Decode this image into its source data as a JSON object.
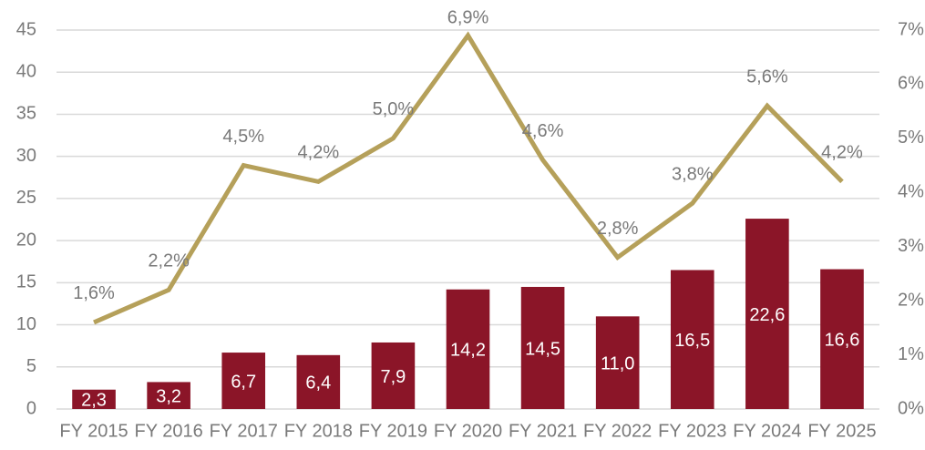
{
  "chart_data": {
    "type": "bar_line",
    "categories": [
      "FY 2015",
      "FY 2016",
      "FY 2017",
      "FY 2018",
      "FY 2019",
      "FY 2020",
      "FY 2021",
      "FY 2022",
      "FY 2023",
      "FY 2024",
      "FY 2025"
    ],
    "series": [
      {
        "type": "bar",
        "color": "#8b1528",
        "axis": "y",
        "values": [
          2.3,
          3.2,
          6.7,
          6.4,
          7.9,
          14.2,
          14.5,
          11.0,
          16.5,
          22.6,
          16.6
        ],
        "value_labels": [
          "2,3",
          "3,2",
          "6,7",
          "6,4",
          "7,9",
          "14,2",
          "14,5",
          "11,0",
          "16,5",
          "22,6",
          "16,6"
        ]
      },
      {
        "type": "line",
        "color": "#b5a05a",
        "axis": "y2",
        "values": [
          1.6,
          2.2,
          4.5,
          4.2,
          5.0,
          6.9,
          4.6,
          2.8,
          3.8,
          5.6,
          4.2
        ],
        "value_labels": [
          "1,6%",
          "2,2%",
          "4,5%",
          "4,2%",
          "5,0%",
          "6,9%",
          "4,6%",
          "2,8%",
          "3,8%",
          "5,6%",
          "4,2%"
        ]
      }
    ],
    "ylim": [
      0,
      45
    ],
    "yticks": [
      0,
      5,
      10,
      15,
      20,
      25,
      30,
      35,
      40,
      45
    ],
    "y2lim": [
      0,
      7
    ],
    "y2ticks": [
      {
        "value": 0,
        "label": "0%"
      },
      {
        "value": 1,
        "label": "1%"
      },
      {
        "value": 2,
        "label": "2%"
      },
      {
        "value": 3,
        "label": "3%"
      },
      {
        "value": 4,
        "label": "4%"
      },
      {
        "value": 5,
        "label": "5%"
      },
      {
        "value": 6,
        "label": "6%"
      },
      {
        "value": 7,
        "label": "7%"
      }
    ],
    "grid": true
  }
}
